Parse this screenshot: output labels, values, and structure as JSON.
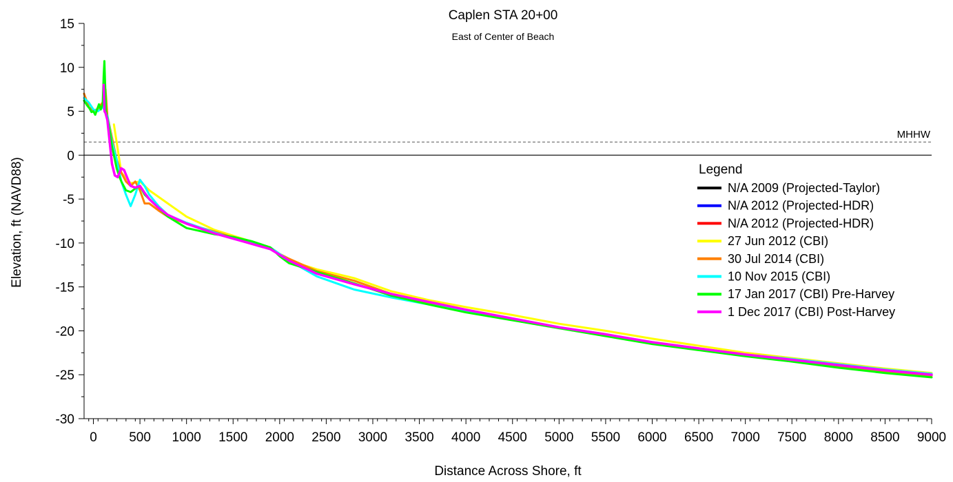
{
  "chart_data": {
    "type": "line",
    "title": "Caplen STA 20+00",
    "subtitle": "East of Center of Beach",
    "xlabel": "Distance Across Shore, ft",
    "ylabel": "Elevation, ft (NAVD88)",
    "xlim": [
      -100,
      9000
    ],
    "ylim": [
      -30,
      15
    ],
    "x_ticks": [
      0,
      500,
      1000,
      1500,
      2000,
      2500,
      3000,
      3500,
      4000,
      4500,
      5000,
      5500,
      6000,
      6500,
      7000,
      7500,
      8000,
      8500,
      9000
    ],
    "y_ticks": [
      -30,
      -25,
      -20,
      -15,
      -10,
      -5,
      0,
      5,
      10,
      15
    ],
    "x_tick_labels": [
      "0",
      "500",
      "1000",
      "1500",
      "2000",
      "2500",
      "3000",
      "3500",
      "4000",
      "4500",
      "5000",
      "5500",
      "6000",
      "6500",
      "7000",
      "7500",
      "8000",
      "8500",
      "9000"
    ],
    "y_tick_labels": [
      "-30",
      "-25",
      "-20",
      "-15",
      "-10",
      "-5",
      "0",
      "5",
      "10",
      "15"
    ],
    "grid": false,
    "reference_lines": [
      {
        "label": "MHHW",
        "y": 1.5,
        "style": "dashed",
        "color": "#555555"
      },
      {
        "label": "",
        "y": 0,
        "style": "solid",
        "color": "#000000"
      }
    ],
    "legend": {
      "title": "Legend",
      "position": "right"
    },
    "series": [
      {
        "name": "N/A 2009 (Projected-Taylor)",
        "color": "#000000",
        "x": [],
        "y": []
      },
      {
        "name": "N/A 2012 (Projected-HDR)",
        "color": "#0000ff",
        "x": [],
        "y": []
      },
      {
        "name": "N/A 2012 (Projected-HDR)",
        "color": "#ff0000",
        "x": [],
        "y": []
      },
      {
        "name": "27 Jun 2012 (CBI)",
        "color": "#ffff00",
        "x": [
          220,
          300,
          400,
          500,
          600,
          800,
          1000,
          1300,
          1600,
          1900,
          2100,
          2400,
          2800,
          3200,
          3600,
          4000,
          4500,
          5000,
          5500,
          6000,
          6500,
          7000,
          7500,
          8000,
          8500,
          9000
        ],
        "y": [
          3.5,
          -2.0,
          -3.2,
          -3.0,
          -4.0,
          -5.5,
          -7.0,
          -8.5,
          -9.5,
          -10.5,
          -12.0,
          -13.0,
          -14.0,
          -15.5,
          -16.5,
          -17.3,
          -18.2,
          -19.2,
          -20.0,
          -20.9,
          -21.7,
          -22.5,
          -23.1,
          -23.7,
          -24.3,
          -24.8
        ]
      },
      {
        "name": "30 Jul 2014 (CBI)",
        "color": "#ff8000",
        "x": [
          -100,
          -50,
          0,
          50,
          100,
          130,
          150,
          200,
          250,
          300,
          350,
          400,
          450,
          500,
          550,
          600,
          700,
          800,
          1000,
          1300,
          1600,
          1900,
          2100,
          2400,
          2800,
          3200,
          3600,
          4000,
          4500,
          5000,
          5500,
          6000,
          6500,
          7000,
          7500,
          8000,
          8500,
          9000
        ],
        "y": [
          7.0,
          5.5,
          5.0,
          5.3,
          6.0,
          7.5,
          4.5,
          2.0,
          -0.5,
          -2.0,
          -3.0,
          -3.5,
          -3.0,
          -4.0,
          -5.5,
          -5.5,
          -6.3,
          -7.0,
          -7.8,
          -8.7,
          -9.7,
          -10.7,
          -11.8,
          -13.2,
          -14.3,
          -15.8,
          -16.8,
          -17.7,
          -18.6,
          -19.6,
          -20.4,
          -21.3,
          -22.0,
          -22.8,
          -23.3,
          -24.0,
          -24.6,
          -25.1
        ]
      },
      {
        "name": "10 Nov 2015 (CBI)",
        "color": "#00ffff",
        "x": [
          -100,
          -50,
          0,
          50,
          100,
          150,
          200,
          250,
          300,
          350,
          400,
          450,
          500,
          550,
          600,
          700,
          800,
          1000,
          1300,
          1600,
          1900,
          2100,
          2400,
          2800,
          3200,
          3600,
          4000,
          4500,
          5000,
          5500,
          6000,
          6500,
          7000,
          7500,
          8000,
          8500,
          9000
        ],
        "y": [
          6.5,
          6.0,
          5.2,
          5.0,
          5.5,
          4.5,
          1.5,
          -0.5,
          -3.0,
          -4.5,
          -5.8,
          -4.5,
          -2.8,
          -3.5,
          -4.5,
          -5.8,
          -6.8,
          -7.7,
          -8.8,
          -9.8,
          -10.5,
          -12.0,
          -13.8,
          -15.3,
          -16.2,
          -17.0,
          -17.8,
          -18.7,
          -19.6,
          -20.5,
          -21.3,
          -22.0,
          -22.7,
          -23.2,
          -23.8,
          -24.4,
          -24.9
        ]
      },
      {
        "name": "17 Jan 2017 (CBI) Pre-Harvey",
        "color": "#00ff00",
        "x": [
          -100,
          -70,
          -40,
          -20,
          0,
          20,
          40,
          60,
          80,
          100,
          110,
          118,
          125,
          135,
          150,
          180,
          200,
          230,
          250,
          280,
          300,
          350,
          400,
          450,
          500,
          550,
          600,
          700,
          800,
          1000,
          1300,
          1500,
          1700,
          1900,
          2000,
          2100,
          2400,
          2800,
          3200,
          3600,
          4000,
          4500,
          5000,
          5500,
          6000,
          6500,
          7000,
          7500,
          8000,
          8500,
          9000
        ],
        "y": [
          6.2,
          5.7,
          5.3,
          4.9,
          5.0,
          4.6,
          5.2,
          5.8,
          5.2,
          5.8,
          9.0,
          10.7,
          8.5,
          5.0,
          4.2,
          2.5,
          1.0,
          -0.5,
          -1.5,
          -2.5,
          -3.0,
          -4.0,
          -4.2,
          -3.8,
          -3.5,
          -4.5,
          -5.0,
          -6.0,
          -7.0,
          -8.3,
          -9.0,
          -9.3,
          -9.8,
          -10.5,
          -11.5,
          -12.3,
          -13.3,
          -14.6,
          -16.0,
          -17.0,
          -17.9,
          -18.8,
          -19.7,
          -20.6,
          -21.5,
          -22.2,
          -22.9,
          -23.5,
          -24.2,
          -24.8,
          -25.3
        ]
      },
      {
        "name": "1 Dec 2017 (CBI) Post-Harvey",
        "color": "#ff00ff",
        "x": [
          110,
          115,
          120,
          130,
          150,
          170,
          200,
          230,
          260,
          300,
          330,
          360,
          400,
          450,
          500,
          550,
          600,
          700,
          800,
          1000,
          1300,
          1600,
          1900,
          2100,
          2400,
          2800,
          3200,
          3600,
          4000,
          4500,
          5000,
          5500,
          6000,
          6500,
          7000,
          7500,
          8000,
          8500,
          9000
        ],
        "y": [
          8.0,
          6.5,
          5.0,
          4.8,
          4.0,
          2.0,
          -1.0,
          -2.3,
          -2.5,
          -1.5,
          -1.7,
          -2.5,
          -3.5,
          -3.7,
          -3.5,
          -4.3,
          -5.0,
          -6.0,
          -6.8,
          -7.8,
          -8.9,
          -9.8,
          -10.7,
          -12.0,
          -13.5,
          -14.7,
          -15.8,
          -16.7,
          -17.6,
          -18.6,
          -19.6,
          -20.4,
          -21.3,
          -22.0,
          -22.7,
          -23.3,
          -23.9,
          -24.5,
          -25.0
        ]
      }
    ]
  }
}
